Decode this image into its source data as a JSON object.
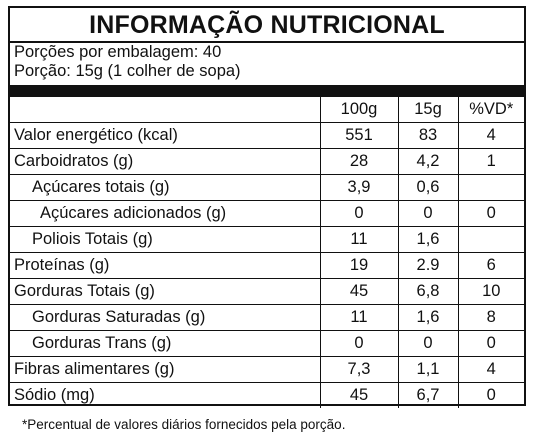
{
  "header": {
    "title": "INFORMAÇÃO NUTRICIONAL",
    "servings_per_package": "Porções por embalagem: 40",
    "serving_size": "Porção: 15g (1 colher de sopa)"
  },
  "table": {
    "columns": [
      "",
      "100g",
      "15g",
      "%VD*"
    ],
    "rows": [
      {
        "label": "Valor energético (kcal)",
        "indent": 0,
        "per100g": "551",
        "per15g": "83",
        "vd": "4"
      },
      {
        "label": "Carboidratos (g)",
        "indent": 0,
        "per100g": "28",
        "per15g": "4,2",
        "vd": "1"
      },
      {
        "label": "Açúcares totais (g)",
        "indent": 1,
        "per100g": "3,9",
        "per15g": "0,6",
        "vd": ""
      },
      {
        "label": "Açúcares adicionados (g)",
        "indent": 2,
        "per100g": "0",
        "per15g": "0",
        "vd": "0"
      },
      {
        "label": "Poliois Totais (g)",
        "indent": 1,
        "per100g": "11",
        "per15g": "1,6",
        "vd": ""
      },
      {
        "label": "Proteínas (g)",
        "indent": 0,
        "per100g": "19",
        "per15g": "2.9",
        "vd": "6"
      },
      {
        "label": "Gorduras Totais (g)",
        "indent": 0,
        "per100g": "45",
        "per15g": "6,8",
        "vd": "10"
      },
      {
        "label": "Gorduras Saturadas (g)",
        "indent": 1,
        "per100g": "11",
        "per15g": "1,6",
        "vd": "8"
      },
      {
        "label": "Gorduras Trans (g)",
        "indent": 1,
        "per100g": "0",
        "per15g": "0",
        "vd": "0"
      },
      {
        "label": "Fibras alimentares (g)",
        "indent": 0,
        "per100g": "7,3",
        "per15g": "1,1",
        "vd": "4"
      },
      {
        "label": "Sódio (mg)",
        "indent": 0,
        "per100g": "45",
        "per15g": "6,7",
        "vd": "0"
      }
    ]
  },
  "footnote": "*Percentual de valores diários fornecidos pela porção."
}
